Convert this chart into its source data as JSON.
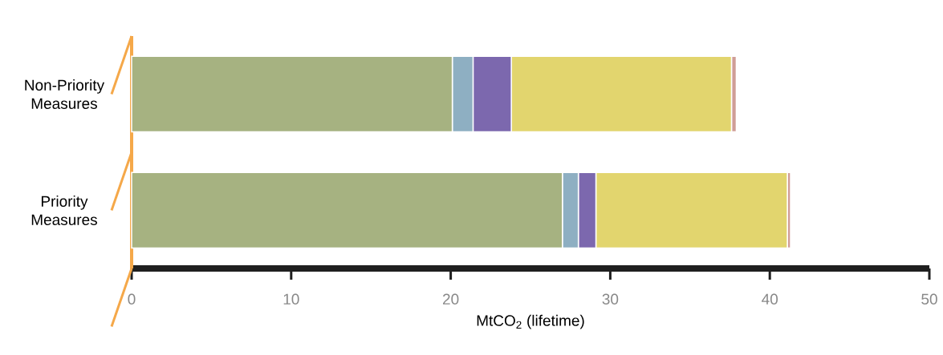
{
  "chart_data": {
    "type": "bar",
    "orientation": "horizontal",
    "stacked": true,
    "categories": [
      "Non-Priority Measures",
      "Priority Measures"
    ],
    "series": [
      {
        "color": "#a6b281",
        "values": [
          20.1,
          27.0
        ]
      },
      {
        "color": "#8eafc2",
        "values": [
          1.3,
          1.0
        ]
      },
      {
        "color": "#7c68ae",
        "values": [
          2.4,
          1.1
        ]
      },
      {
        "color": "#e2d56e",
        "values": [
          13.8,
          12.0
        ]
      },
      {
        "color": "#d09d96",
        "values": [
          0.3,
          0.2
        ]
      }
    ],
    "xlabel": "MtCO$_{2}$ (lifetime)",
    "xlim": [
      0,
      50
    ],
    "xticks": [
      0,
      10,
      20,
      30,
      40,
      50
    ]
  }
}
